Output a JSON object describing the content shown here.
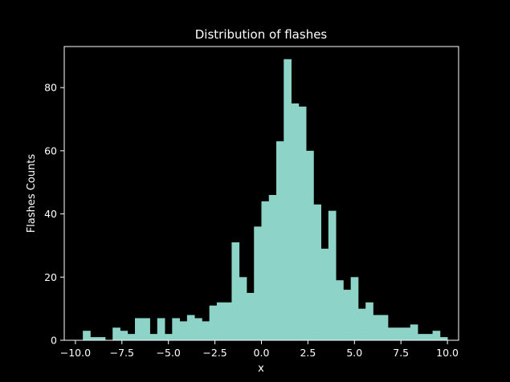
{
  "chart_data": {
    "type": "bar",
    "title": "Distribution of flashes",
    "xlabel": "x",
    "ylabel": "Flashes Counts",
    "xlim": [
      -10.6,
      10.6
    ],
    "ylim": [
      0,
      93
    ],
    "xticks": [
      -10.0,
      -7.5,
      -5.0,
      -2.5,
      0.0,
      2.5,
      5.0,
      7.5,
      10.0
    ],
    "xtick_labels": [
      "−10.0",
      "−7.5",
      "−5.0",
      "−2.5",
      "0.0",
      "2.5",
      "5.0",
      "7.5",
      "10.0"
    ],
    "yticks": [
      0,
      20,
      40,
      60,
      80
    ],
    "ytick_labels": [
      "0",
      "20",
      "40",
      "60",
      "80"
    ],
    "bin_width": 0.4,
    "bins_start": -9.6,
    "counts": [
      3,
      1,
      1,
      0,
      4,
      3,
      2,
      7,
      7,
      2,
      7,
      2,
      7,
      6,
      8,
      7,
      6,
      11,
      12,
      12,
      31,
      20,
      15,
      36,
      44,
      46,
      63,
      89,
      75,
      74,
      60,
      43,
      29,
      41,
      19,
      16,
      20,
      10,
      12,
      8,
      8,
      4,
      4,
      4,
      5,
      2,
      2,
      3,
      1
    ],
    "bar_color": "#8dd3c7",
    "background": "#000000",
    "grid": false
  }
}
